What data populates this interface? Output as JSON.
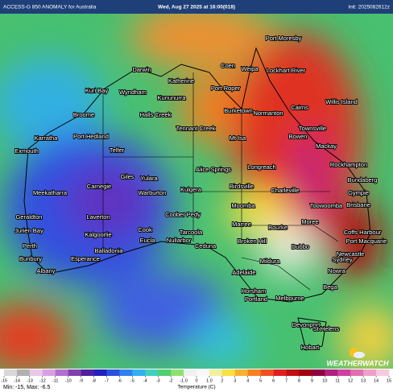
{
  "header": {
    "left": "ACCESS-G 850 ANOMALY for Australia",
    "center": "Wed, Aug 27 2025 at 16:00(018)",
    "right": "Init: 2025082612z"
  },
  "places": [
    "Port Moresby",
    "Coen",
    "Weipa",
    "Lockhart River",
    "Darwin",
    "Katherine",
    "Port Roper",
    "Kuri Bay",
    "Wyndham",
    "Kununurra",
    "Burketown",
    "Normanton",
    "Cairns",
    "Willis Island",
    "Broome",
    "Halls Creek",
    "Tennant Creek",
    "Townsville",
    "Karratha",
    "Port Hedland",
    "Mt Isa",
    "Bowen",
    "Mackay",
    "Exmouth",
    "Telfer",
    "Rockhampton",
    "Longreach",
    "Alice Springs",
    "Bundaberg",
    "Giles",
    "Yulara",
    "Carnegie",
    "Meekatharra",
    "Warburton",
    "Kulgera",
    "Birdsville",
    "Charleville",
    "Gympie",
    "Toowoomba",
    "Brisbane",
    "Moomba",
    "Laverton",
    "Coober Pedy",
    "Geraldton",
    "Marree",
    "Bourke",
    "Moree",
    "Coffs Harbour",
    "Cook",
    "Kalgoorlie",
    "Tarcoola",
    "Broken Hill",
    "Port Macquarie",
    "Jurien Bay",
    "Eucla",
    "Nullarbor",
    "Dubbo",
    "Perth",
    "Ceduna",
    "Balladonia",
    "Newcastle",
    "Esperance",
    "Mildura",
    "Sydney",
    "Bunbury",
    "Albany",
    "Adelaide",
    "Nowra",
    "Horsham",
    "Portland",
    "Melbourne",
    "Bega",
    "Devonport",
    "St Helens",
    "Hobart"
  ],
  "colorbar": {
    "colors": [
      "#d8d8d8",
      "#b0b0b0",
      "#e8c8e8",
      "#d8a0e0",
      "#b070d0",
      "#8040b0",
      "#5020a0",
      "#2020c0",
      "#2850e0",
      "#3080f0",
      "#30b0f0",
      "#40d0c0",
      "#50d070",
      "#90e070",
      "#f0f0f0",
      "#f8f8f8",
      "#f0f0a0",
      "#f8e040",
      "#f8b030",
      "#f88020",
      "#f05020",
      "#e02020",
      "#c01010",
      "#a00010",
      "#900040",
      "#b02080",
      "#d040a0",
      "#e070b0",
      "#f0a0c8",
      "#f8c8e0"
    ],
    "ticks": [
      -15,
      -14,
      -13,
      -12,
      -11,
      -10,
      -9,
      -8,
      -7,
      -6,
      -5,
      -4,
      -3,
      -2,
      {
        "value": -1,
        "label": "-1.0"
      },
      0,
      {
        "value": 1,
        "label": "1.0"
      },
      2,
      3,
      4,
      5,
      6,
      7,
      8,
      9,
      10,
      11,
      12,
      13,
      14,
      15
    ],
    "label": "Temperature (C)"
  },
  "footer": {
    "stats": "Min: -15, Max: -6.5",
    "logo": "WEATHERWATCH"
  }
}
